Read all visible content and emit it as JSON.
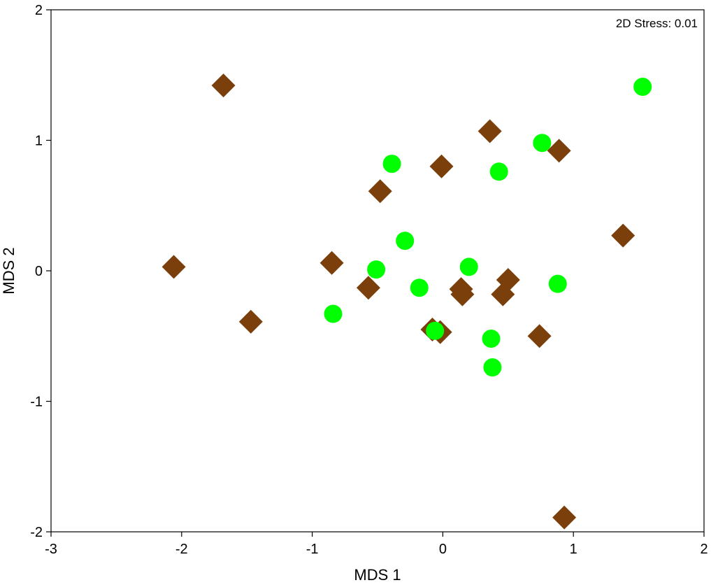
{
  "chart_data": {
    "type": "scatter",
    "xlabel": "MDS 1",
    "ylabel": "MDS 2",
    "xlim": [
      -3,
      2
    ],
    "ylim": [
      -2,
      2
    ],
    "xticks": [
      -3,
      -2,
      -1,
      0,
      1,
      2
    ],
    "yticks": [
      -2,
      -1,
      0,
      1,
      2
    ],
    "annotation": "2D Stress: 0.01",
    "grid": false,
    "series": [
      {
        "marker": "diamond",
        "color": "#7B3F0C",
        "points": [
          [
            -1.68,
            1.42
          ],
          [
            0.36,
            1.07
          ],
          [
            0.89,
            0.92
          ],
          [
            -0.01,
            0.8
          ],
          [
            -0.48,
            0.61
          ],
          [
            1.38,
            0.27
          ],
          [
            -2.06,
            0.03
          ],
          [
            -0.85,
            0.06
          ],
          [
            -0.57,
            -0.13
          ],
          [
            0.14,
            -0.14
          ],
          [
            0.5,
            -0.07
          ],
          [
            0.15,
            -0.18
          ],
          [
            0.46,
            -0.18
          ],
          [
            -1.47,
            -0.39
          ],
          [
            -0.08,
            -0.45
          ],
          [
            -0.02,
            -0.47
          ],
          [
            0.74,
            -0.5
          ],
          [
            0.93,
            -1.89
          ]
        ]
      },
      {
        "marker": "circle",
        "color": "#00FF00",
        "points": [
          [
            1.53,
            1.41
          ],
          [
            0.76,
            0.98
          ],
          [
            -0.39,
            0.82
          ],
          [
            0.43,
            0.76
          ],
          [
            -0.29,
            0.23
          ],
          [
            -0.51,
            0.01
          ],
          [
            0.2,
            0.03
          ],
          [
            -0.18,
            -0.13
          ],
          [
            0.88,
            -0.1
          ],
          [
            -0.84,
            -0.33
          ],
          [
            -0.06,
            -0.46
          ],
          [
            0.37,
            -0.52
          ],
          [
            0.38,
            -0.74
          ]
        ]
      }
    ]
  }
}
